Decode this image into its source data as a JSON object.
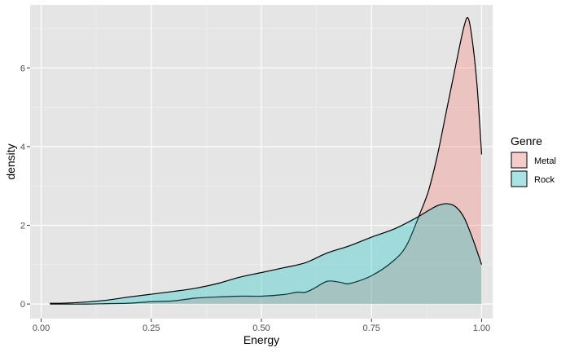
{
  "chart_data": {
    "type": "area",
    "xlabel": "Energy",
    "ylabel": "density",
    "xlim": [
      -0.025,
      1.025
    ],
    "ylim": [
      -0.37,
      7.6
    ],
    "x_ticks": [
      0.0,
      0.25,
      0.5,
      0.75,
      1.0
    ],
    "x_tick_labels": [
      "0.00",
      "0.25",
      "0.50",
      "0.75",
      "1.00"
    ],
    "y_ticks": [
      0,
      2,
      4,
      6
    ],
    "y_tick_labels": [
      "0",
      "2",
      "4",
      "6"
    ],
    "grid": true,
    "legend": {
      "title": "Genre",
      "position": "right"
    },
    "series": [
      {
        "name": "Metal",
        "color": "#f8766d",
        "points": [
          [
            0.02,
            0.0
          ],
          [
            0.1,
            0.0
          ],
          [
            0.15,
            0.01
          ],
          [
            0.2,
            0.02
          ],
          [
            0.25,
            0.06
          ],
          [
            0.3,
            0.08
          ],
          [
            0.35,
            0.15
          ],
          [
            0.4,
            0.18
          ],
          [
            0.45,
            0.2
          ],
          [
            0.5,
            0.2
          ],
          [
            0.55,
            0.24
          ],
          [
            0.58,
            0.3
          ],
          [
            0.6,
            0.3
          ],
          [
            0.62,
            0.4
          ],
          [
            0.65,
            0.58
          ],
          [
            0.68,
            0.55
          ],
          [
            0.7,
            0.52
          ],
          [
            0.75,
            0.72
          ],
          [
            0.8,
            1.1
          ],
          [
            0.83,
            1.5
          ],
          [
            0.86,
            2.3
          ],
          [
            0.88,
            2.9
          ],
          [
            0.9,
            3.8
          ],
          [
            0.92,
            4.9
          ],
          [
            0.94,
            6.0
          ],
          [
            0.96,
            7.05
          ],
          [
            0.97,
            7.25
          ],
          [
            0.98,
            6.6
          ],
          [
            0.99,
            5.5
          ],
          [
            1.0,
            3.8
          ]
        ]
      },
      {
        "name": "Rock",
        "color": "#00bfc4",
        "points": [
          [
            0.02,
            0.02
          ],
          [
            0.05,
            0.02
          ],
          [
            0.1,
            0.05
          ],
          [
            0.15,
            0.1
          ],
          [
            0.2,
            0.18
          ],
          [
            0.25,
            0.25
          ],
          [
            0.3,
            0.32
          ],
          [
            0.35,
            0.4
          ],
          [
            0.4,
            0.52
          ],
          [
            0.45,
            0.68
          ],
          [
            0.5,
            0.8
          ],
          [
            0.55,
            0.92
          ],
          [
            0.6,
            1.05
          ],
          [
            0.65,
            1.3
          ],
          [
            0.7,
            1.48
          ],
          [
            0.75,
            1.7
          ],
          [
            0.8,
            1.9
          ],
          [
            0.85,
            2.18
          ],
          [
            0.88,
            2.38
          ],
          [
            0.9,
            2.5
          ],
          [
            0.92,
            2.55
          ],
          [
            0.94,
            2.48
          ],
          [
            0.96,
            2.2
          ],
          [
            0.98,
            1.65
          ],
          [
            1.0,
            1.0
          ]
        ]
      }
    ]
  }
}
